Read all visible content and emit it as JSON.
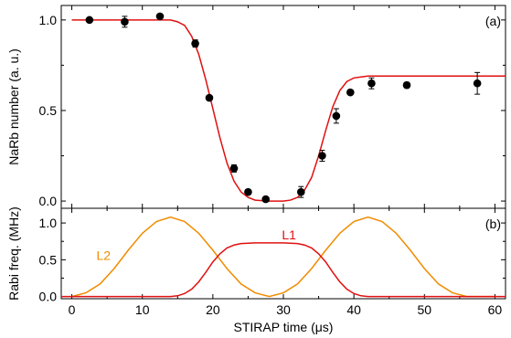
{
  "chart_data": [
    {
      "panel_label": "(a)",
      "type": "scatter",
      "ylabel": "NaRb number (a. u.)",
      "xlim": [
        -1.5,
        61.5
      ],
      "ylim": [
        -0.04,
        1.08
      ],
      "x_ticks": [
        0,
        10,
        20,
        30,
        40,
        50,
        60
      ],
      "y_ticks": [
        0.0,
        0.5,
        1.0
      ],
      "y_tick_labels": [
        "0.0",
        "0.5",
        "1.0"
      ],
      "tick_labels_on_x": false,
      "colors": {
        "points": "#000000",
        "fit": "#e01010"
      },
      "points": [
        {
          "x": 2.5,
          "y": 1.0,
          "err": 0.012
        },
        {
          "x": 7.5,
          "y": 0.99,
          "err": 0.03
        },
        {
          "x": 12.5,
          "y": 1.02,
          "err": 0.012
        },
        {
          "x": 17.5,
          "y": 0.87,
          "err": 0.02
        },
        {
          "x": 19.5,
          "y": 0.57,
          "err": 0.012
        },
        {
          "x": 23.0,
          "y": 0.18,
          "err": 0.02
        },
        {
          "x": 25.0,
          "y": 0.05,
          "err": 0.01
        },
        {
          "x": 27.5,
          "y": 0.01,
          "err": 0.012
        },
        {
          "x": 32.5,
          "y": 0.05,
          "err": 0.03
        },
        {
          "x": 35.5,
          "y": 0.25,
          "err": 0.03
        },
        {
          "x": 37.5,
          "y": 0.47,
          "err": 0.04
        },
        {
          "x": 39.5,
          "y": 0.6,
          "err": 0.012
        },
        {
          "x": 42.5,
          "y": 0.65,
          "err": 0.03
        },
        {
          "x": 47.5,
          "y": 0.64,
          "err": 0.015
        },
        {
          "x": 57.5,
          "y": 0.65,
          "err": 0.06
        }
      ],
      "fit_curve": {
        "x": [
          0,
          14,
          15,
          16,
          17,
          18,
          19,
          20,
          21,
          22,
          23,
          24,
          25,
          26,
          28,
          30,
          31,
          32,
          33,
          34,
          35,
          36,
          37,
          38,
          39,
          40,
          41,
          42,
          44,
          61.5
        ],
        "y": [
          1.0,
          1.0,
          0.99,
          0.97,
          0.91,
          0.81,
          0.67,
          0.51,
          0.35,
          0.21,
          0.11,
          0.05,
          0.02,
          0.005,
          0.0,
          0.0,
          0.005,
          0.02,
          0.06,
          0.13,
          0.25,
          0.39,
          0.52,
          0.61,
          0.66,
          0.68,
          0.685,
          0.69,
          0.69,
          0.69
        ]
      }
    },
    {
      "panel_label": "(b)",
      "type": "line",
      "xlabel": "STIRAP time (μs)",
      "ylabel": "Rabi freq. (MHz)",
      "xlim": [
        -1.5,
        61.5
      ],
      "ylim": [
        -0.03,
        1.2
      ],
      "x_ticks": [
        0,
        10,
        20,
        30,
        40,
        50,
        60
      ],
      "x_tick_labels": [
        "0",
        "10",
        "20",
        "30",
        "40",
        "50",
        "60"
      ],
      "y_ticks": [
        0.0,
        0.5,
        1.0
      ],
      "y_tick_labels": [
        "0.0",
        "0.5",
        "1.0"
      ],
      "series": [
        {
          "name": "L2",
          "color": "#f08c00",
          "x": [
            0,
            2,
            4,
            6,
            8,
            10,
            12,
            14,
            16,
            18,
            20,
            22,
            24,
            26,
            28,
            30,
            32,
            34,
            36,
            38,
            40,
            42,
            44,
            46,
            48,
            50,
            52,
            54,
            56,
            58,
            60
          ],
          "y": [
            0.0,
            0.05,
            0.17,
            0.38,
            0.63,
            0.86,
            1.02,
            1.08,
            1.02,
            0.86,
            0.63,
            0.38,
            0.17,
            0.05,
            0.0,
            0.05,
            0.17,
            0.38,
            0.63,
            0.86,
            1.02,
            1.08,
            1.02,
            0.86,
            0.63,
            0.38,
            0.17,
            0.05,
            0.0,
            0.0,
            0.0
          ]
        },
        {
          "name": "L1",
          "color": "#e01010",
          "x": [
            -1.5,
            14,
            15,
            16,
            17,
            18,
            19,
            20,
            21,
            22,
            23,
            24,
            26,
            28,
            30,
            32,
            33,
            34,
            35,
            36,
            37,
            38,
            39,
            40,
            41,
            42,
            43,
            44,
            61.5
          ],
          "y": [
            0.0,
            0.0,
            0.01,
            0.04,
            0.1,
            0.2,
            0.33,
            0.47,
            0.58,
            0.66,
            0.7,
            0.72,
            0.73,
            0.73,
            0.73,
            0.72,
            0.7,
            0.66,
            0.58,
            0.47,
            0.33,
            0.2,
            0.1,
            0.04,
            0.01,
            0.0,
            0.0,
            0.0,
            0.0
          ]
        }
      ],
      "annotations": [
        {
          "text": "L2",
          "x": 4.5,
          "y": 0.5,
          "color": "#f08c00"
        },
        {
          "text": "L1",
          "x": 30.8,
          "y": 0.78,
          "color": "#e01010"
        }
      ]
    }
  ]
}
